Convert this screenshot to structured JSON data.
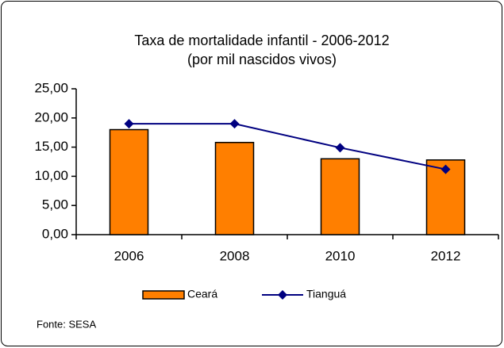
{
  "chart_data": {
    "type": "bar",
    "title": "Taxa de mortalidade infantil - 2006-2012",
    "subtitle": "(por mil nascidos vivos)",
    "categories": [
      "2006",
      "2008",
      "2010",
      "2012"
    ],
    "series": [
      {
        "name": "Ceará",
        "type": "bar",
        "color": "#ff7f00",
        "values": [
          18.0,
          15.8,
          13.0,
          12.8
        ]
      },
      {
        "name": "Tianguá",
        "type": "line",
        "color": "#000080",
        "values": [
          19.0,
          19.0,
          14.9,
          11.2
        ]
      }
    ],
    "ylim": [
      0,
      25
    ],
    "yticks": [
      {
        "value": 0,
        "label": "0,00"
      },
      {
        "value": 5,
        "label": "5,00"
      },
      {
        "value": 10,
        "label": "10,00"
      },
      {
        "value": 15,
        "label": "15,00"
      },
      {
        "value": 20,
        "label": "20,00"
      },
      {
        "value": 25,
        "label": "25,00"
      }
    ],
    "legend": "bottom",
    "source": "Fonte: SESA"
  }
}
